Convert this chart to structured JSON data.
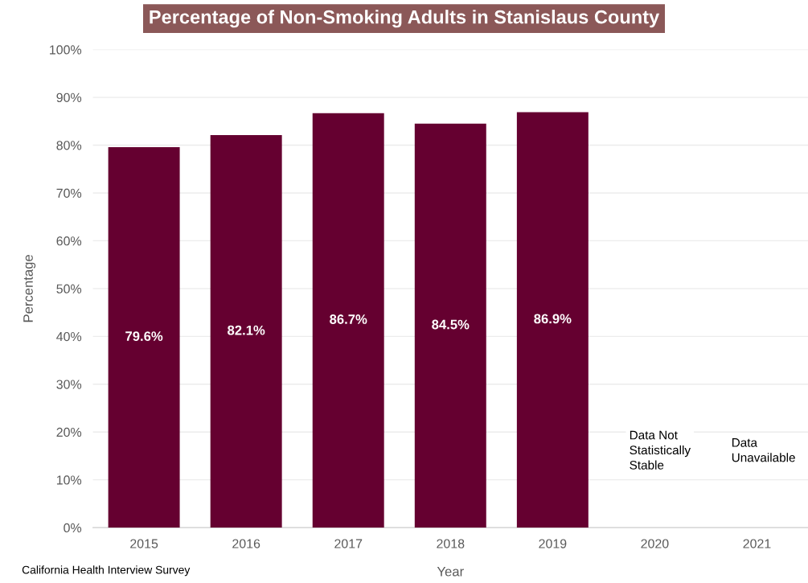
{
  "chart_data": {
    "type": "bar",
    "title": "Percentage of Non-Smoking Adults in Stanislaus County",
    "xlabel": "Year",
    "ylabel": "Percentage",
    "categories": [
      "2015",
      "2016",
      "2017",
      "2018",
      "2019",
      "2020",
      "2021"
    ],
    "values": [
      79.6,
      82.1,
      86.7,
      84.5,
      86.9,
      null,
      null
    ],
    "value_labels": [
      "79.6%",
      "82.1%",
      "86.7%",
      "84.5%",
      "86.9%",
      null,
      null
    ],
    "color": "#650030",
    "ylim": [
      0,
      100
    ],
    "yticks": [
      {
        "value": 0,
        "label": "0%"
      },
      {
        "value": 10,
        "label": "10%"
      },
      {
        "value": 20,
        "label": "20%"
      },
      {
        "value": 30,
        "label": "30%"
      },
      {
        "value": 40,
        "label": "40%"
      },
      {
        "value": 50,
        "label": "50%"
      },
      {
        "value": 60,
        "label": "60%"
      },
      {
        "value": 70,
        "label": "70%"
      },
      {
        "value": 80,
        "label": "80%"
      },
      {
        "value": 90,
        "label": "90%"
      },
      {
        "value": 100,
        "label": "100%"
      }
    ],
    "grid": "y",
    "annotations": [
      "Data Not\nStatistically\nStable",
      "Data\nUnavailable",
      "California Health Interview Survey"
    ]
  }
}
